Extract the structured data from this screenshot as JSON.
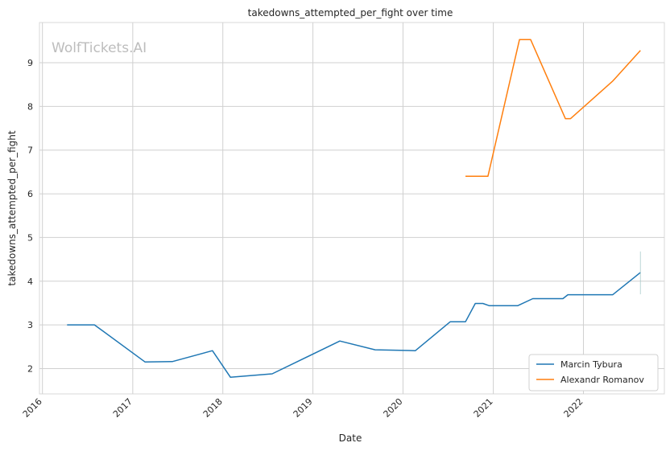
{
  "chart_data": {
    "type": "line",
    "title": "takedowns_attempted_per_fight over time",
    "xlabel": "Date",
    "ylabel": "takedowns_attempted_per_fight",
    "watermark": "WolfTickets.AI",
    "xlim": [
      "2015-12-20",
      "2022-11-25"
    ],
    "ylim": [
      1.42,
      9.92
    ],
    "x_ticks": [
      "2016",
      "2017",
      "2018",
      "2019",
      "2020",
      "2021",
      "2022"
    ],
    "y_ticks": [
      2,
      3,
      4,
      5,
      6,
      7,
      8,
      9
    ],
    "grid": true,
    "legend_position": "lower-right",
    "series": [
      {
        "name": "Marcin Tybura",
        "color": "#1f77b4",
        "points": [
          [
            "2016-04-10",
            3.0
          ],
          [
            "2016-07-30",
            3.0
          ],
          [
            "2017-02-20",
            2.15
          ],
          [
            "2017-06-10",
            2.16
          ],
          [
            "2017-11-20",
            2.41
          ],
          [
            "2018-02-01",
            1.8
          ],
          [
            "2018-07-20",
            1.88
          ],
          [
            "2019-04-20",
            2.63
          ],
          [
            "2019-09-10",
            2.43
          ],
          [
            "2020-02-20",
            2.41
          ],
          [
            "2020-07-10",
            3.07
          ],
          [
            "2020-09-10",
            3.07
          ],
          [
            "2020-10-20",
            3.49
          ],
          [
            "2020-11-20",
            3.49
          ],
          [
            "2020-12-15",
            3.44
          ],
          [
            "2021-04-10",
            3.44
          ],
          [
            "2021-06-10",
            3.6
          ],
          [
            "2021-10-10",
            3.6
          ],
          [
            "2021-10-30",
            3.69
          ],
          [
            "2022-04-30",
            3.69
          ],
          [
            "2022-08-20",
            4.2
          ]
        ]
      },
      {
        "name": "Alexandr Romanov",
        "color": "#ff7f0e",
        "points": [
          [
            "2020-09-10",
            6.4
          ],
          [
            "2020-12-10",
            6.4
          ],
          [
            "2021-04-17",
            9.53
          ],
          [
            "2021-06-01",
            9.53
          ],
          [
            "2021-10-20",
            7.72
          ],
          [
            "2021-11-10",
            7.72
          ],
          [
            "2022-04-30",
            8.58
          ],
          [
            "2022-08-20",
            9.28
          ]
        ]
      }
    ]
  }
}
